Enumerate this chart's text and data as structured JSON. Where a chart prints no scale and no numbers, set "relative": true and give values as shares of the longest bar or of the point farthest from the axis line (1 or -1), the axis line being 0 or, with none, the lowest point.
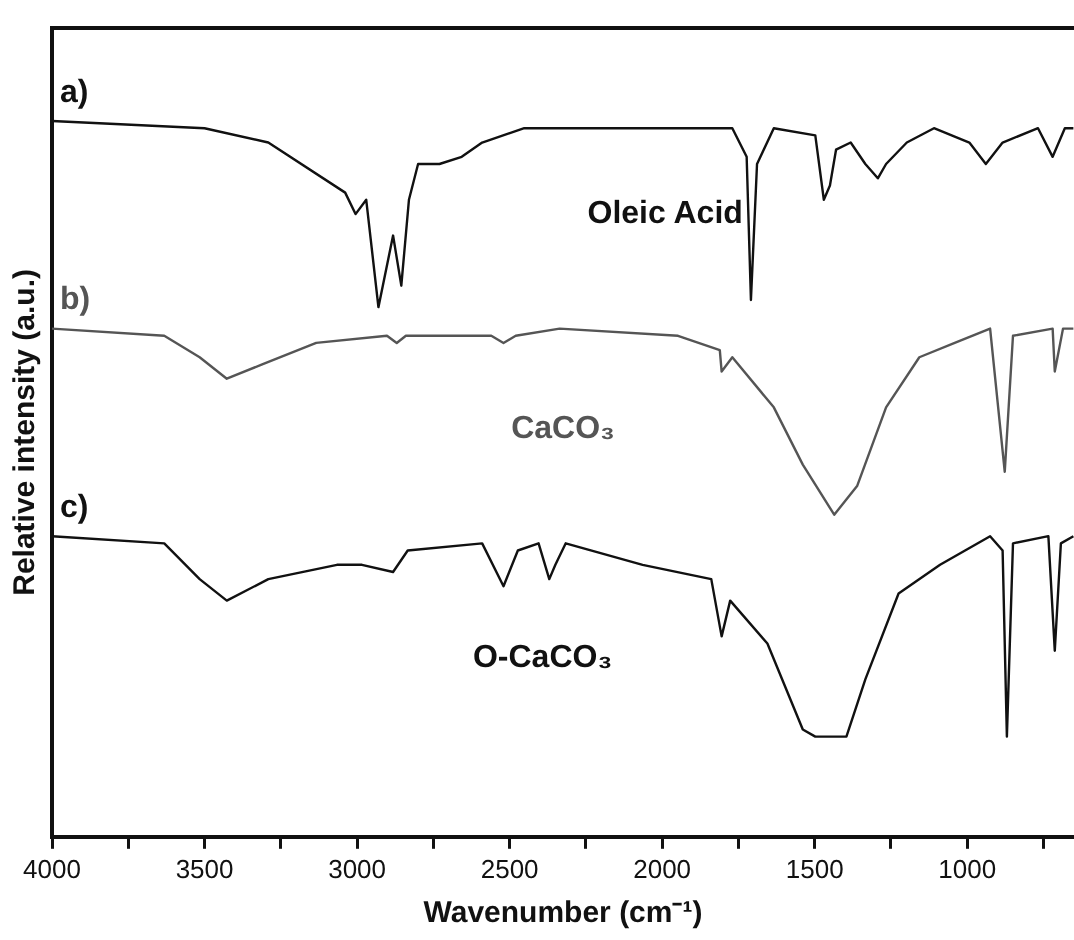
{
  "chart_data": {
    "type": "line",
    "relative": true,
    "xlabel": "Wavenumber (cm⁻¹)",
    "ylabel": "Relative intensity (a.u.)",
    "xlim": [
      4000,
      650
    ],
    "xticks": [
      4000,
      {
        "value": 3750,
        "label": null
      },
      3500,
      {
        "value": 3250,
        "label": null
      },
      3000,
      {
        "value": 2750,
        "label": null
      },
      2500,
      {
        "value": 2250,
        "label": null
      },
      2000,
      {
        "value": 1750,
        "label": null
      },
      1500,
      {
        "value": 1250,
        "label": null
      },
      1000,
      {
        "value": 750,
        "label": null
      }
    ],
    "grid": false,
    "legend": false,
    "marker": "none",
    "line_style": "solid",
    "annotations": [
      "a)",
      "b)",
      "c)"
    ],
    "series": [
      {
        "name": "Oleic Acid",
        "color": "#111111",
        "x": [
          4000,
          3500,
          3291,
          3039,
          3005,
          2970,
          2930,
          2882,
          2855,
          2830,
          2800,
          2730,
          2657,
          2590,
          2452,
          2336,
          1839,
          1770,
          1723,
          1709,
          1689,
          1634,
          1498,
          1470,
          1450,
          1430,
          1382,
          1334,
          1293,
          1266,
          1198,
          1109,
          993,
          939,
          884,
          768,
          720,
          680,
          652
        ],
        "values": [
          1.0,
          0.99,
          0.97,
          0.9,
          0.87,
          0.89,
          0.74,
          0.84,
          0.77,
          0.89,
          0.94,
          0.94,
          0.95,
          0.97,
          0.99,
          0.99,
          0.99,
          0.99,
          0.95,
          0.75,
          0.94,
          0.99,
          0.98,
          0.89,
          0.91,
          0.96,
          0.97,
          0.94,
          0.92,
          0.94,
          0.97,
          0.99,
          0.97,
          0.94,
          0.97,
          0.99,
          0.95,
          0.99,
          0.99
        ]
      },
      {
        "name": "CaCO₃",
        "color": "#555555",
        "x": [
          4000,
          3632,
          3516,
          3427,
          3311,
          3134,
          2902,
          2870,
          2840,
          2560,
          2520,
          2480,
          2336,
          1948,
          1811,
          1805,
          1770,
          1634,
          1539,
          1436,
          1361,
          1266,
          1157,
          1041,
          925,
          877,
          850,
          720,
          713,
          686,
          652
        ],
        "values": [
          0.71,
          0.7,
          0.67,
          0.64,
          0.66,
          0.69,
          0.7,
          0.69,
          0.7,
          0.7,
          0.69,
          0.7,
          0.71,
          0.7,
          0.68,
          0.65,
          0.67,
          0.6,
          0.52,
          0.45,
          0.49,
          0.6,
          0.67,
          0.69,
          0.71,
          0.51,
          0.7,
          0.71,
          0.65,
          0.71,
          0.71
        ]
      },
      {
        "name": "O-CaCO₃",
        "color": "#111111",
        "x": [
          4000,
          3632,
          3516,
          3427,
          3291,
          3066,
          2984,
          2882,
          2834,
          2590,
          2520,
          2473,
          2405,
          2370,
          2350,
          2316,
          2064,
          1839,
          1805,
          1777,
          1655,
          1539,
          1498,
          1396,
          1334,
          1225,
          1089,
          925,
          884,
          870,
          850,
          734,
          713,
          693,
          652
        ],
        "values": [
          0.42,
          0.41,
          0.36,
          0.33,
          0.36,
          0.38,
          0.38,
          0.37,
          0.4,
          0.41,
          0.35,
          0.4,
          0.41,
          0.36,
          0.38,
          0.41,
          0.38,
          0.36,
          0.28,
          0.33,
          0.27,
          0.15,
          0.14,
          0.14,
          0.22,
          0.34,
          0.38,
          0.42,
          0.4,
          0.14,
          0.41,
          0.42,
          0.26,
          0.41,
          0.42
        ]
      }
    ]
  }
}
